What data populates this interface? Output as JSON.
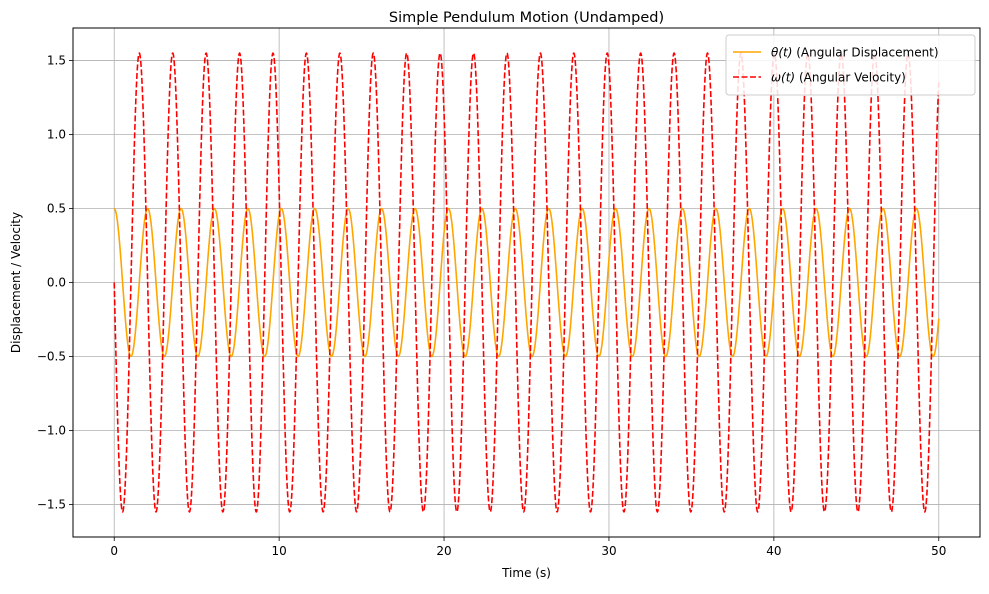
{
  "chart_data": {
    "type": "line",
    "title": "Simple Pendulum Motion (Undamped)",
    "xlabel": "Time (s)",
    "ylabel": "Displacement / Velocity",
    "xlim": [
      -2.5,
      52.5
    ],
    "ylim": [
      -1.72,
      1.72
    ],
    "xticks": [
      0,
      10,
      20,
      30,
      40,
      50
    ],
    "xtick_labels": [
      "0",
      "10",
      "20",
      "30",
      "40",
      "50"
    ],
    "yticks": [
      -1.5,
      -1.0,
      -0.5,
      0.0,
      0.5,
      1.0,
      1.5
    ],
    "ytick_labels": [
      "−1.5",
      "−1.0",
      "−0.5",
      "0.0",
      "0.5",
      "1.0",
      "1.5"
    ],
    "grid": true,
    "legend_position": "top-right",
    "series": [
      {
        "name": "θ(t) (Angular Displacement)",
        "name_symbol": "θ(t)",
        "name_rest": " (Angular Displacement)",
        "color": "#ffa500",
        "style": "solid",
        "function": "theta(t) = 0.5 * cos(3.1 * t)",
        "amplitude": 0.5,
        "angular_frequency": 3.1,
        "t_range": [
          0,
          50
        ]
      },
      {
        "name": "ω(t) (Angular Velocity)",
        "name_symbol": "ω(t)",
        "name_rest": " (Angular Velocity)",
        "color": "#ff0000",
        "style": "dashed",
        "function": "omega(t) = -1.55 * sin(3.1 * t)",
        "amplitude": 1.55,
        "angular_frequency": 3.1,
        "t_range": [
          0,
          50
        ]
      }
    ]
  }
}
